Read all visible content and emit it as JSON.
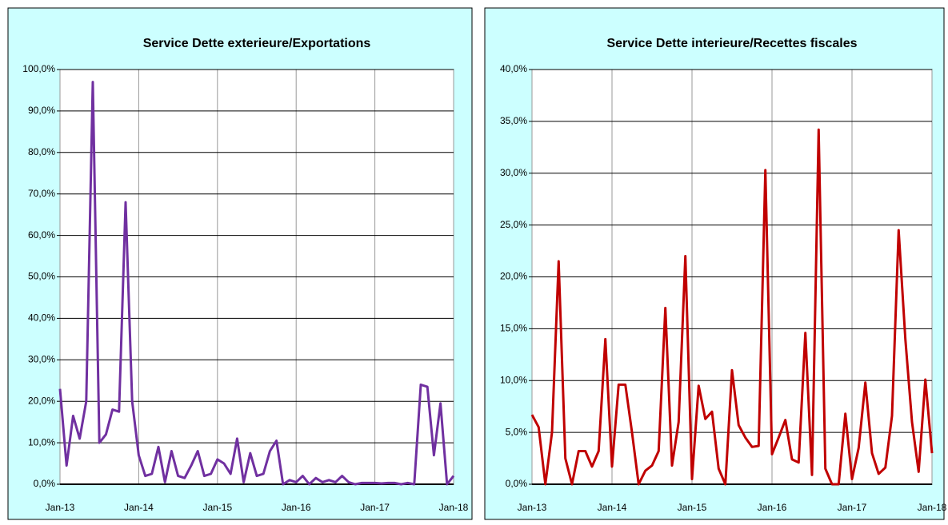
{
  "chart_data": [
    {
      "type": "line",
      "title": "Service Dette exterieure/Exportations",
      "categories": [
        "Jan-13",
        null,
        null,
        null,
        null,
        null,
        null,
        null,
        null,
        null,
        null,
        null,
        "Jan-14",
        null,
        null,
        null,
        null,
        null,
        null,
        null,
        null,
        null,
        null,
        null,
        "Jan-15",
        null,
        null,
        null,
        null,
        null,
        null,
        null,
        null,
        null,
        null,
        null,
        "Jan-16",
        null,
        null,
        null,
        null,
        null,
        null,
        null,
        null,
        null,
        null,
        null,
        "Jan-17",
        null,
        null,
        null,
        null,
        null,
        null,
        null,
        null,
        null,
        null,
        null,
        "Jan-18"
      ],
      "series": [
        {
          "color": "#7030a0",
          "values": [
            23,
            4.5,
            16.5,
            11,
            20,
            97,
            10,
            12,
            18,
            17.5,
            68,
            20,
            7,
            2,
            2.5,
            9,
            0.5,
            8,
            2,
            1.5,
            4.5,
            8,
            2,
            2.5,
            6,
            5,
            2.5,
            11,
            0.5,
            7.5,
            2,
            2.5,
            8,
            10.5,
            0,
            1,
            0.5,
            2,
            0,
            1.5,
            0.5,
            1,
            0.5,
            2,
            0.5,
            0,
            0.3,
            0.3,
            0.3,
            0.2,
            0.3,
            0.3,
            0,
            0.3,
            0,
            24,
            23.5,
            7,
            19.5,
            0,
            2
          ]
        }
      ],
      "ylim": [
        0,
        100
      ],
      "yticks": [
        {
          "value": 0,
          "label": "0,0%"
        },
        {
          "value": 10,
          "label": "10,0%"
        },
        {
          "value": 20,
          "label": "20,0%"
        },
        {
          "value": 30,
          "label": "30,0%"
        },
        {
          "value": 40,
          "label": "40,0%"
        },
        {
          "value": 50,
          "label": "50,0%"
        },
        {
          "value": 60,
          "label": "60,0%"
        },
        {
          "value": 70,
          "label": "70,0%"
        },
        {
          "value": 80,
          "label": "80,0%"
        },
        {
          "value": 90,
          "label": "90,0%"
        },
        {
          "value": 100,
          "label": "100,0%"
        }
      ],
      "grid": true
    },
    {
      "type": "line",
      "title": "Service Dette interieure/Recettes fiscales",
      "categories": [
        "Jan-13",
        null,
        null,
        null,
        null,
        null,
        null,
        null,
        null,
        null,
        null,
        null,
        "Jan-14",
        null,
        null,
        null,
        null,
        null,
        null,
        null,
        null,
        null,
        null,
        null,
        "Jan-15",
        null,
        null,
        null,
        null,
        null,
        null,
        null,
        null,
        null,
        null,
        null,
        "Jan-16",
        null,
        null,
        null,
        null,
        null,
        null,
        null,
        null,
        null,
        null,
        null,
        "Jan-17",
        null,
        null,
        null,
        null,
        null,
        null,
        null,
        null,
        null,
        null,
        null,
        "Jan-18"
      ],
      "series": [
        {
          "color": "#c00000",
          "values": [
            6.7,
            5.5,
            0,
            5,
            21.5,
            2.5,
            0,
            3.2,
            3.2,
            1.7,
            3.2,
            14,
            1.7,
            9.6,
            9.6,
            5,
            0,
            1.3,
            1.8,
            3.2,
            17,
            1.8,
            6,
            22,
            0.5,
            9.5,
            6.3,
            7,
            1.5,
            0,
            11,
            5.7,
            4.5,
            3.6,
            3.7,
            30.3,
            2.9,
            4.5,
            6.2,
            2.4,
            2.1,
            14.6,
            0.9,
            34.2,
            1.5,
            0,
            0,
            6.8,
            0.5,
            3.5,
            9.8,
            3,
            1,
            1.6,
            6.6,
            24.5,
            14,
            6,
            1.2,
            10.1,
            3
          ]
        }
      ],
      "ylim": [
        0,
        40
      ],
      "yticks": [
        {
          "value": 0,
          "label": "0,0%"
        },
        {
          "value": 5,
          "label": "5,0%"
        },
        {
          "value": 10,
          "label": "10,0%"
        },
        {
          "value": 15,
          "label": "15,0%"
        },
        {
          "value": 20,
          "label": "20,0%"
        },
        {
          "value": 25,
          "label": "25,0%"
        },
        {
          "value": 30,
          "label": "30,0%"
        },
        {
          "value": 35,
          "label": "35,0%"
        },
        {
          "value": 40,
          "label": "40,0%"
        }
      ],
      "grid": true
    }
  ]
}
